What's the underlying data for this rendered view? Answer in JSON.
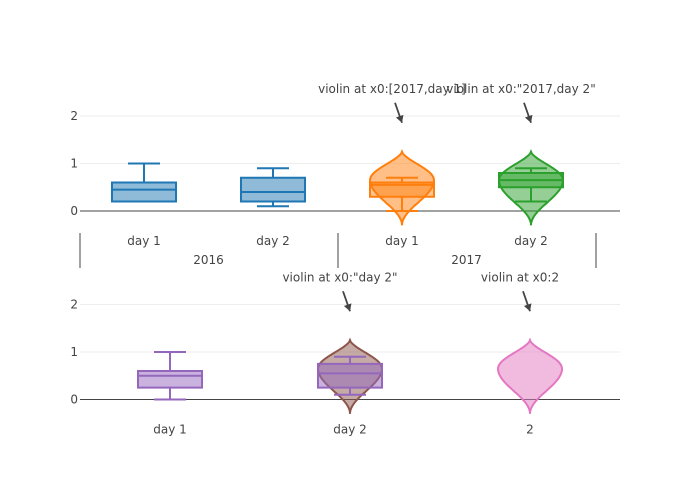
{
  "chart_data": [
    {
      "type": "box",
      "panel": "top",
      "y_axis": {
        "range": [
          -0.5,
          2.5
        ],
        "ticks": [
          0,
          1,
          2
        ],
        "grid": true,
        "zeroline": true
      },
      "x_axis": {
        "categories": [
          "day 1",
          "day 2",
          "day 1",
          "day 2"
        ],
        "groups": [
          {
            "label": "2016",
            "span": [
              0,
              1
            ]
          },
          {
            "label": "2017",
            "span": [
              2,
              3
            ]
          }
        ]
      },
      "traces": [
        {
          "kind": "box",
          "x_index": 0,
          "color": "#1f77b4",
          "q1": 0.2,
          "median": 0.45,
          "q3": 0.6,
          "whisker_low": 0.2,
          "whisker_high": 1.0
        },
        {
          "kind": "box",
          "x_index": 1,
          "color": "#1f77b4",
          "q1": 0.2,
          "median": 0.4,
          "q3": 0.7,
          "whisker_low": 0.1,
          "whisker_high": 0.9
        },
        {
          "kind": "violin",
          "x_index": 2,
          "color": "#ff7f0e",
          "y_min": -0.3,
          "y_max": 1.25,
          "peak": 0.65,
          "box": {
            "q1": 0.3,
            "median": 0.55,
            "q3": 0.6,
            "whisker_low": 0.0,
            "whisker_high": 0.7
          }
        },
        {
          "kind": "violin",
          "x_index": 3,
          "color": "#2ca02c",
          "y_min": -0.3,
          "y_max": 1.25,
          "peak": 0.65,
          "box": {
            "q1": 0.5,
            "median": 0.65,
            "q3": 0.8,
            "whisker_low": 0.2,
            "whisker_high": 0.9
          }
        }
      ],
      "annotations": [
        {
          "text": "violin at x0:[2017,day 1]",
          "x_index": 2,
          "y": 1.5
        },
        {
          "text": "violin at x0:\"2017,day 2\"",
          "x_index": 3,
          "y": 1.5
        }
      ]
    },
    {
      "type": "box",
      "panel": "bottom",
      "y_axis": {
        "range": [
          -0.5,
          2.5
        ],
        "ticks": [
          0,
          1,
          2
        ],
        "grid": true,
        "zeroline": true
      },
      "x_axis": {
        "categories": [
          "day 1",
          "day 2",
          "2"
        ]
      },
      "traces": [
        {
          "kind": "box",
          "x_index": 0,
          "color": "#9467bd",
          "q1": 0.25,
          "median": 0.5,
          "q3": 0.6,
          "whisker_low": 0.0,
          "whisker_high": 1.0
        },
        {
          "kind": "violin",
          "x_index": 1,
          "color": "#8c564b",
          "y_min": -0.3,
          "y_max": 1.25,
          "peak": 0.65
        },
        {
          "kind": "box",
          "x_index": 1,
          "color": "#9467bd",
          "q1": 0.25,
          "median": 0.55,
          "q3": 0.75,
          "whisker_low": 0.1,
          "whisker_high": 0.9
        },
        {
          "kind": "violin",
          "x_index": 2,
          "color": "#e377c2",
          "y_min": -0.3,
          "y_max": 1.25,
          "peak": 0.65
        }
      ],
      "annotations": [
        {
          "text": "violin at x0:\"day 2\"",
          "x_index": 1,
          "y": 1.5
        },
        {
          "text": "violin at x0:2",
          "x_index": 2,
          "y": 1.5
        }
      ]
    }
  ]
}
